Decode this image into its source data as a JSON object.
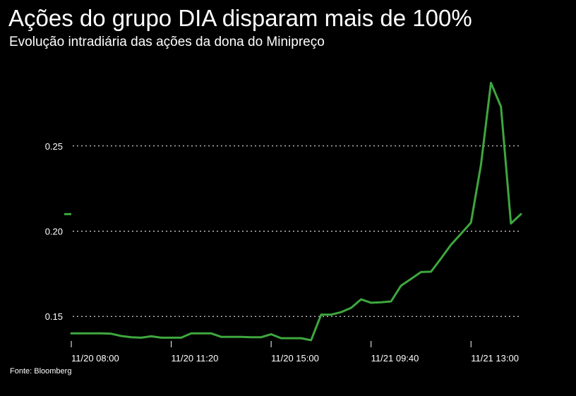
{
  "title": "Ações do grupo DIA disparam mais de 100%",
  "subtitle": "Evolução intradiária das ações da dona do Minipreço",
  "source": "Fonte: Bloomberg",
  "colors": {
    "background": "#000000",
    "line": "#3ea73e",
    "gridline": "#ffffff",
    "text": "#ffffff"
  },
  "chart_data": {
    "type": "line",
    "title": "Ações do grupo DIA disparam mais de 100%",
    "subtitle": "Evolução intradiária das ações da dona do Minipreço",
    "xlabel": "",
    "ylabel": "",
    "ylim": [
      0.136,
      0.288
    ],
    "yticks": [
      0.15,
      0.2,
      0.25
    ],
    "ytick_labels": [
      "0.15",
      "0.20",
      "0.25"
    ],
    "xtick_labels": [
      "11/20 08:00",
      "11/20 11:20",
      "11/20 15:00",
      "11/21 09:40",
      "11/21 13:00"
    ],
    "xtick_positions": [
      0,
      10,
      20,
      30,
      40
    ],
    "grid": "horizontal dotted",
    "last_value_marker": 0.21,
    "series": [
      {
        "values": [
          0.14,
          0.14,
          0.14,
          0.14,
          0.1398,
          0.1385,
          0.1378,
          0.1375,
          0.1383,
          0.1375,
          0.1375,
          0.1375,
          0.14,
          0.14,
          0.14,
          0.138,
          0.138,
          0.138,
          0.1378,
          0.1378,
          0.1395,
          0.1372,
          0.1372,
          0.1372,
          0.136,
          0.151,
          0.151,
          0.1525,
          0.155,
          0.16,
          0.158,
          0.1583,
          0.1588,
          0.168,
          0.172,
          0.176,
          0.1762,
          0.184,
          0.192,
          0.1985,
          0.205,
          0.239,
          0.287,
          0.273,
          0.2045,
          0.21
        ]
      }
    ]
  }
}
